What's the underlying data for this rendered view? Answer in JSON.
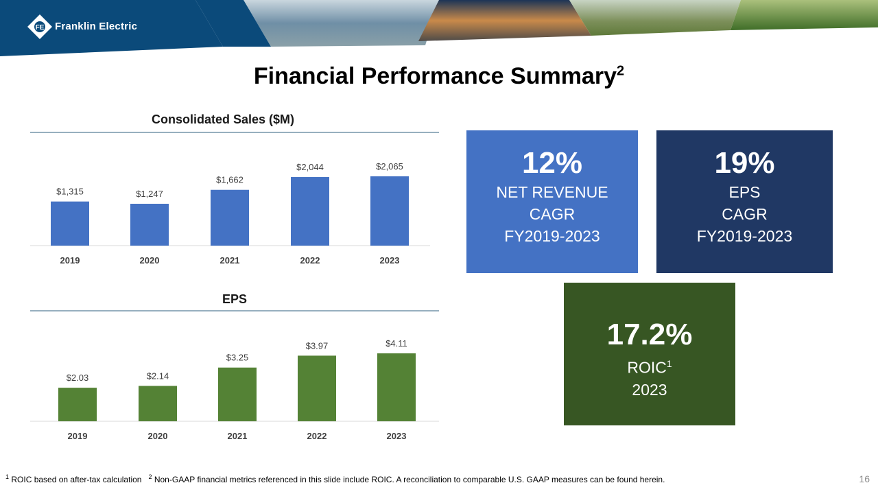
{
  "header": {
    "brand": "Franklin Electric",
    "brand_color": "#0b4a7a"
  },
  "title": {
    "text": "Financial Performance Summary",
    "sup": "2"
  },
  "chart_data": [
    {
      "type": "bar",
      "title": "Consolidated Sales ($M)",
      "categories": [
        "2019",
        "2020",
        "2021",
        "2022",
        "2023"
      ],
      "values": [
        1315,
        1247,
        1662,
        2044,
        2065
      ],
      "labels": [
        "$1,315",
        "$1,247",
        "$1,662",
        "$2,044",
        "$2,065"
      ],
      "color": "#4472C4",
      "ylim": [
        0,
        2065
      ],
      "grid": false
    },
    {
      "type": "bar",
      "title": "EPS",
      "categories": [
        "2019",
        "2020",
        "2021",
        "2022",
        "2023"
      ],
      "values": [
        2.03,
        2.14,
        3.25,
        3.97,
        4.11
      ],
      "labels": [
        "$2.03",
        "$2.14",
        "$3.25",
        "$3.97",
        "$4.11"
      ],
      "color": "#548235",
      "ylim": [
        0,
        4.11
      ],
      "grid": false
    }
  ],
  "kpis": [
    {
      "value": "12%",
      "lines": [
        "NET REVENUE",
        "CAGR",
        "FY2019-2023"
      ],
      "color": "#4472C4"
    },
    {
      "value": "19%",
      "lines": [
        "EPS",
        "CAGR",
        "FY2019-2023"
      ],
      "color": "#203864"
    },
    {
      "value": "17.2%",
      "lines": [
        "ROIC",
        "2023"
      ],
      "sup": "1",
      "color": "#375623"
    }
  ],
  "footnote": {
    "n1": "1",
    "t1": "ROIC based on after-tax calculation",
    "n2": "2",
    "t2": "Non-GAAP financial metrics referenced in this slide include ROIC. A reconciliation to comparable U.S. GAAP measures can be found herein."
  },
  "page_number": "16"
}
